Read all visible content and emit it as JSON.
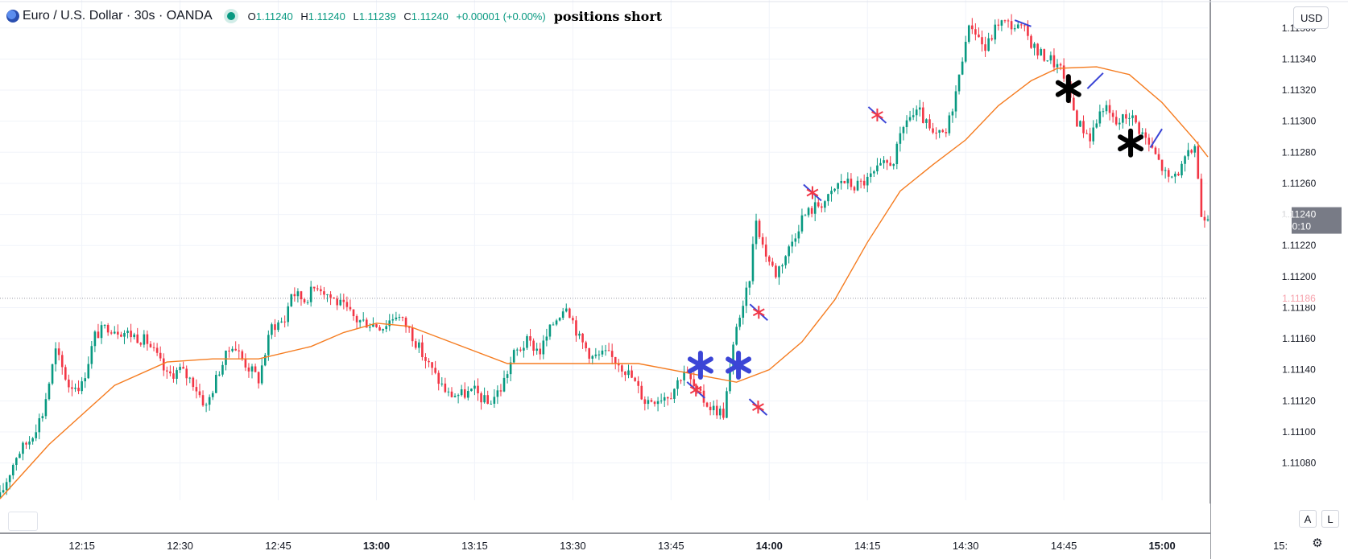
{
  "header": {
    "symbol_title": "Euro / U.S. Dollar · 30s · OANDA",
    "ohlc": {
      "o_label": "O",
      "o": "1.11240",
      "h_label": "H",
      "h": "1.11240",
      "l_label": "L",
      "l": "1.11239",
      "c_label": "C",
      "c": "1.11240",
      "change": "+0.00001 (+0.00%)"
    },
    "note": "positions short"
  },
  "price_scale": {
    "currency_button": "USD",
    "last_price": "1.11240",
    "countdown": "00:10",
    "ref_price": "1.11186"
  },
  "controls": {
    "auto": "A",
    "log": "L"
  },
  "colors": {
    "up": "#089981",
    "down": "#f23645",
    "ma": "#f57c20",
    "marker_blue": "#3b45d6",
    "marker_red": "#f23645"
  },
  "chart_data": {
    "type": "candlestick",
    "instrument": "Euro / U.S. Dollar · 30s · OANDA",
    "y_axis": {
      "ylim": [
        1.11056,
        1.11378
      ],
      "ticks": [
        "1.11080",
        "1.11100",
        "1.11120",
        "1.11140",
        "1.11160",
        "1.11180",
        "1.11200",
        "1.11220",
        "1.11240",
        "1.11260",
        "1.11280",
        "1.11300",
        "1.11320",
        "1.11340",
        "1.11360"
      ]
    },
    "x_axis": {
      "xlim_minutes": [
        722.5,
        907
      ],
      "ticks": [
        {
          "m": 735,
          "label": "12:15",
          "bold": false
        },
        {
          "m": 750,
          "label": "12:30",
          "bold": false
        },
        {
          "m": 765,
          "label": "12:45",
          "bold": false
        },
        {
          "m": 780,
          "label": "13:00",
          "bold": true
        },
        {
          "m": 795,
          "label": "13:15",
          "bold": false
        },
        {
          "m": 810,
          "label": "13:30",
          "bold": false
        },
        {
          "m": 825,
          "label": "13:45",
          "bold": false
        },
        {
          "m": 840,
          "label": "14:00",
          "bold": true
        },
        {
          "m": 855,
          "label": "14:15",
          "bold": false
        },
        {
          "m": 870,
          "label": "14:30",
          "bold": false
        },
        {
          "m": 885,
          "label": "14:45",
          "bold": false
        },
        {
          "m": 900,
          "label": "15:00",
          "bold": true
        }
      ],
      "edge_label": "15:"
    },
    "grid": true,
    "price_path": [
      [
        722.5,
        1.11058
      ],
      [
        725,
        1.11085
      ],
      [
        727,
        1.11095
      ],
      [
        729,
        1.11112
      ],
      [
        731,
        1.11152
      ],
      [
        733,
        1.1113
      ],
      [
        735,
        1.1113
      ],
      [
        737,
        1.11162
      ],
      [
        739,
        1.11168
      ],
      [
        741,
        1.11165
      ],
      [
        743,
        1.11162
      ],
      [
        745,
        1.11158
      ],
      [
        746.5,
        1.11148
      ],
      [
        748,
        1.11136
      ],
      [
        750,
        1.1114
      ],
      [
        752,
        1.11132
      ],
      [
        754,
        1.11116
      ],
      [
        756,
        1.1114
      ],
      [
        758,
        1.11157
      ],
      [
        760,
        1.11144
      ],
      [
        762,
        1.11134
      ],
      [
        764,
        1.11168
      ],
      [
        766,
        1.11172
      ],
      [
        767,
        1.1119
      ],
      [
        769,
        1.11185
      ],
      [
        771,
        1.11195
      ],
      [
        773,
        1.11187
      ],
      [
        775,
        1.1118
      ],
      [
        777,
        1.11172
      ],
      [
        779,
        1.1117
      ],
      [
        781,
        1.11168
      ],
      [
        783,
        1.11176
      ],
      [
        785,
        1.11166
      ],
      [
        787,
        1.1115
      ],
      [
        789,
        1.11136
      ],
      [
        791,
        1.11124
      ],
      [
        793,
        1.11124
      ],
      [
        795,
        1.11126
      ],
      [
        797,
        1.11118
      ],
      [
        799,
        1.11128
      ],
      [
        801,
        1.1115
      ],
      [
        803,
        1.11158
      ],
      [
        805,
        1.11152
      ],
      [
        807,
        1.1117
      ],
      [
        809,
        1.11183
      ],
      [
        811,
        1.1116
      ],
      [
        813,
        1.11148
      ],
      [
        815,
        1.1115
      ],
      [
        817,
        1.11145
      ],
      [
        819,
        1.11135
      ],
      [
        821,
        1.1112
      ],
      [
        823,
        1.11122
      ],
      [
        825,
        1.11125
      ],
      [
        827,
        1.1114
      ],
      [
        829,
        1.11125
      ],
      [
        831,
        1.11116
      ],
      [
        833,
        1.11112
      ],
      [
        834,
        1.11138
      ],
      [
        835,
        1.1117
      ],
      [
        836,
        1.11178
      ],
      [
        837,
        1.112
      ],
      [
        838,
        1.11238
      ],
      [
        839,
        1.1122
      ],
      [
        840,
        1.1121
      ],
      [
        841,
        1.11202
      ],
      [
        843,
        1.11218
      ],
      [
        845,
        1.11238
      ],
      [
        847,
        1.11245
      ],
      [
        849,
        1.1125
      ],
      [
        851,
        1.11262
      ],
      [
        853,
        1.11258
      ],
      [
        855,
        1.11262
      ],
      [
        857,
        1.1127
      ],
      [
        859,
        1.11275
      ],
      [
        861,
        1.11302
      ],
      [
        863,
        1.11305
      ],
      [
        865,
        1.1129
      ],
      [
        867,
        1.11292
      ],
      [
        869,
        1.11328
      ],
      [
        870,
        1.11355
      ],
      [
        871,
        1.11362
      ],
      [
        873,
        1.11346
      ],
      [
        875,
        1.11364
      ],
      [
        877,
        1.11362
      ],
      [
        879,
        1.11358
      ],
      [
        881,
        1.11344
      ],
      [
        883,
        1.1134
      ],
      [
        885,
        1.1133
      ],
      [
        887,
        1.113
      ],
      [
        889,
        1.1129
      ],
      [
        891,
        1.1131
      ],
      [
        893,
        1.11298
      ],
      [
        895,
        1.11305
      ],
      [
        897,
        1.11292
      ],
      [
        899,
        1.11278
      ],
      [
        901,
        1.11262
      ],
      [
        903,
        1.1127
      ],
      [
        905,
        1.11285
      ],
      [
        906,
        1.1124
      ],
      [
        907,
        1.1124
      ]
    ],
    "moving_average": [
      [
        722.5,
        1.11057
      ],
      [
        730,
        1.11092
      ],
      [
        740,
        1.1113
      ],
      [
        748,
        1.11145
      ],
      [
        755,
        1.11147
      ],
      [
        762,
        1.11147
      ],
      [
        770,
        1.11155
      ],
      [
        775,
        1.11164
      ],
      [
        780,
        1.1117
      ],
      [
        785,
        1.11168
      ],
      [
        790,
        1.1116
      ],
      [
        800,
        1.11144
      ],
      [
        810,
        1.11144
      ],
      [
        820,
        1.11144
      ],
      [
        825,
        1.1114
      ],
      [
        830,
        1.11136
      ],
      [
        835,
        1.11132
      ],
      [
        840,
        1.1114
      ],
      [
        845,
        1.11158
      ],
      [
        850,
        1.11185
      ],
      [
        855,
        1.11222
      ],
      [
        860,
        1.11255
      ],
      [
        865,
        1.11272
      ],
      [
        870,
        1.11288
      ],
      [
        875,
        1.1131
      ],
      [
        880,
        1.11326
      ],
      [
        884,
        1.11334
      ],
      [
        890,
        1.11335
      ],
      [
        895,
        1.1133
      ],
      [
        900,
        1.11312
      ],
      [
        905,
        1.11288
      ],
      [
        907,
        1.11277
      ]
    ],
    "markers": [
      {
        "type": "cross-red",
        "m": 838.4,
        "p": 1.11177
      },
      {
        "type": "cross-red",
        "m": 838.3,
        "p": 1.11116
      },
      {
        "type": "cross-red",
        "m": 828.8,
        "p": 1.11127
      },
      {
        "type": "cross-red",
        "m": 856.5,
        "p": 1.11304
      },
      {
        "type": "cross-red",
        "m": 846.6,
        "p": 1.11254
      },
      {
        "type": "asterisk-blue",
        "m": 829.5,
        "p": 1.11143
      },
      {
        "type": "asterisk-blue",
        "m": 835.3,
        "p": 1.11143
      },
      {
        "type": "asterisk-black",
        "m": 885.7,
        "p": 1.11321
      },
      {
        "type": "asterisk-black",
        "m": 895.2,
        "p": 1.11286
      },
      {
        "type": "line-blue",
        "m1": 877.5,
        "p1": 1.11365,
        "m2": 880.0,
        "p2": 1.11361
      },
      {
        "type": "line-blue",
        "m1": 888.6,
        "p1": 1.11321,
        "m2": 891.0,
        "p2": 1.11331
      },
      {
        "type": "line-blue",
        "m1": 898.2,
        "p1": 1.11283,
        "m2": 900.0,
        "p2": 1.11295
      }
    ]
  }
}
